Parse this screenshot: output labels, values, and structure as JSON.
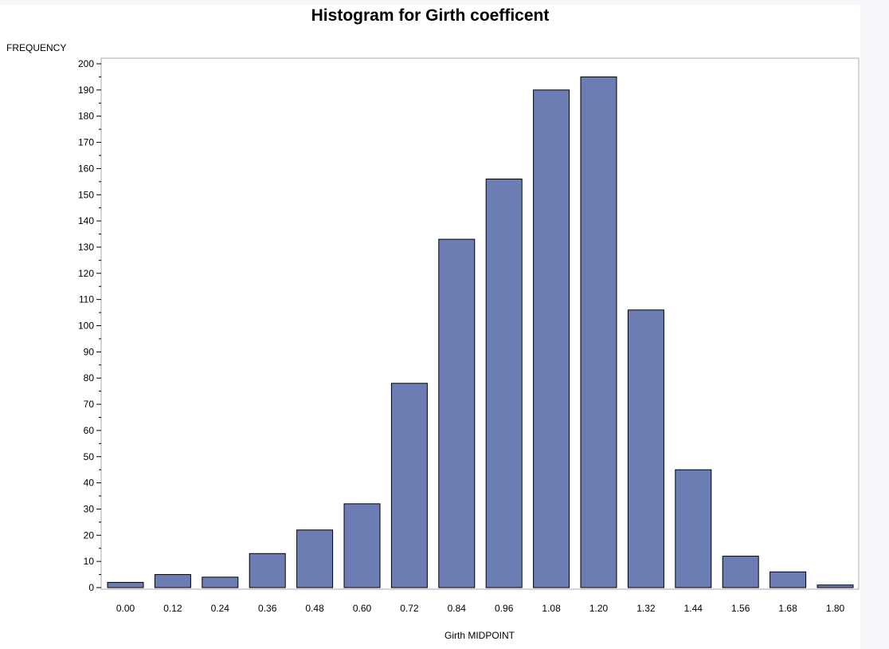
{
  "colors": {
    "bar_fill": "#6c7db3",
    "bar_stroke": "#000000",
    "frame": "#a8a8a8",
    "background": "#ffffff",
    "side_panel": "#f4f6f9"
  },
  "chart_data": {
    "type": "bar",
    "title": "Histogram for Girth coefficent",
    "xlabel": "Girth MIDPOINT",
    "ylabel": "FREQUENCY",
    "categories": [
      "0.00",
      "0.12",
      "0.24",
      "0.36",
      "0.48",
      "0.60",
      "0.72",
      "0.84",
      "0.96",
      "1.08",
      "1.20",
      "1.32",
      "1.44",
      "1.56",
      "1.68",
      "1.80"
    ],
    "values": [
      2,
      5,
      4,
      13,
      22,
      32,
      78,
      133,
      156,
      190,
      195,
      106,
      45,
      12,
      6,
      1
    ],
    "ylim": [
      0,
      200
    ],
    "yticks": [
      0,
      10,
      20,
      30,
      40,
      50,
      60,
      70,
      80,
      90,
      100,
      110,
      120,
      130,
      140,
      150,
      160,
      170,
      180,
      190,
      200
    ],
    "grid": false,
    "legend": "none"
  }
}
